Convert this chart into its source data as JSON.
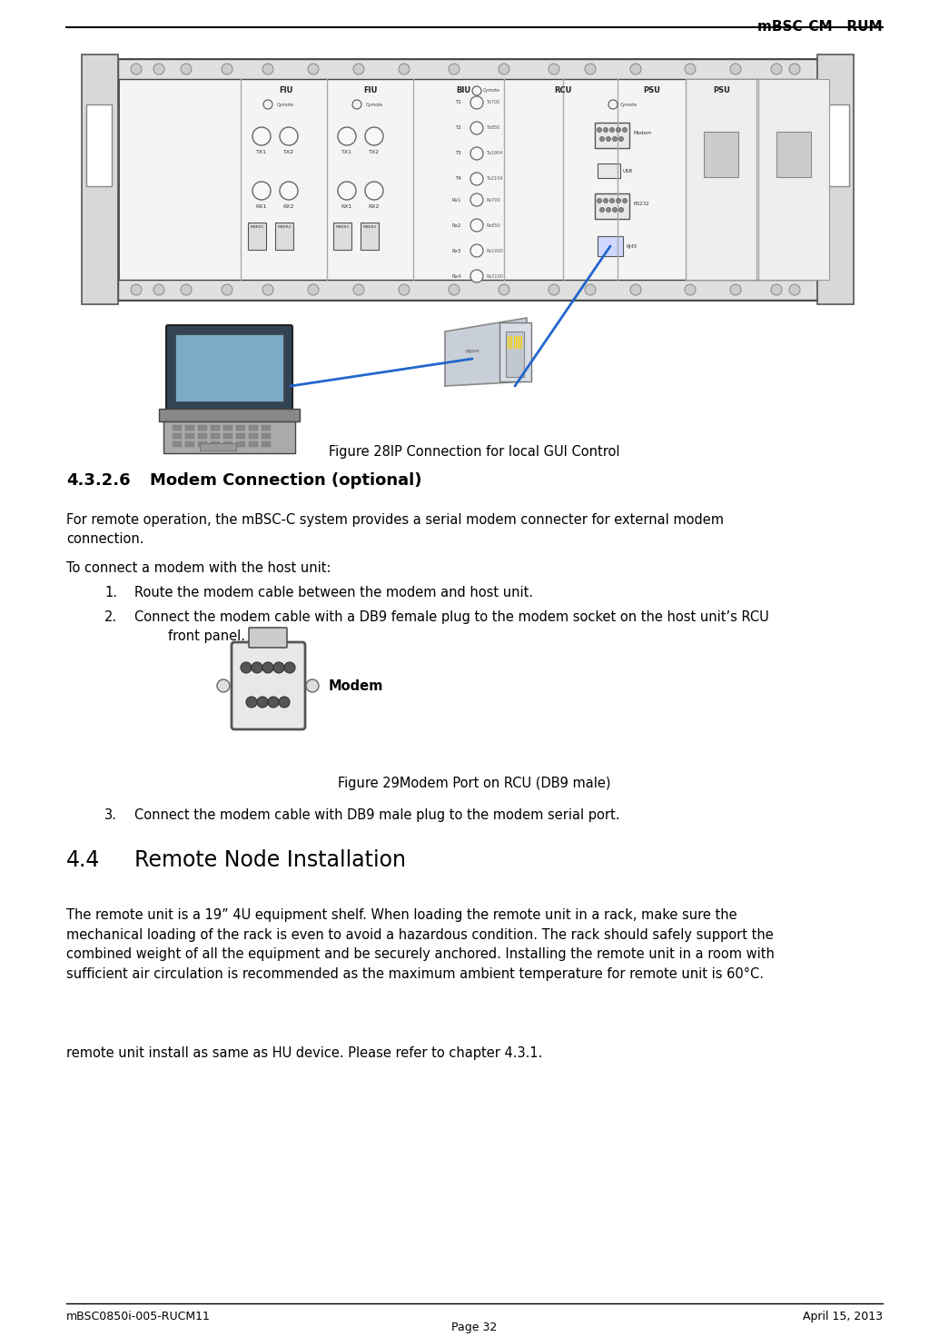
{
  "header_right": "mBSC-CM   RUM",
  "footer_left": "mBSC0850i-005-RUCM11",
  "footer_right": "April 15, 2013",
  "footer_center": "Page 32",
  "section_number": "4.3.2.6",
  "section_title": "Modem Connection (optional)",
  "section_44_number": "4.4",
  "section_44_title": "Remote Node Installation",
  "fig28_caption": "Figure 28IP Connection for local GUI Control",
  "fig29_caption": "Figure 29Modem Port on RCU (DB9 male)",
  "para1": "For remote operation, the mBSC-C system provides a serial modem connecter for external modem\nconnection.",
  "para2": "To connect a modem with the host unit:",
  "item1": "Route the modem cable between the modem and host unit.",
  "item2": "Connect the modem cable with a DB9 female plug to the modem socket on the host unit’s RCU\n        front panel.",
  "item3": "Connect the modem cable with DB9 male plug to the modem serial port.",
  "para44_1": "The remote unit is a 19” 4U equipment shelf. When loading the remote unit in a rack, make sure the\nmechanical loading of the rack is even to avoid a hazardous condition. The rack should safely support the\ncombined weight of all the equipment and be securely anchored. Installing the remote unit in a room with\nsufficient air circulation is recommended as the maximum ambient temperature for remote unit is 60°C.",
  "para44_2": "remote unit install as same as HU device. Please refer to chapter 4.3.1.",
  "bg_color": "#ffffff",
  "text_color": "#000000",
  "line_color": "#000000",
  "font_size_body": 10.5,
  "font_size_header": 11,
  "font_size_section": 13,
  "font_size_section44": 17,
  "font_size_footer": 9
}
